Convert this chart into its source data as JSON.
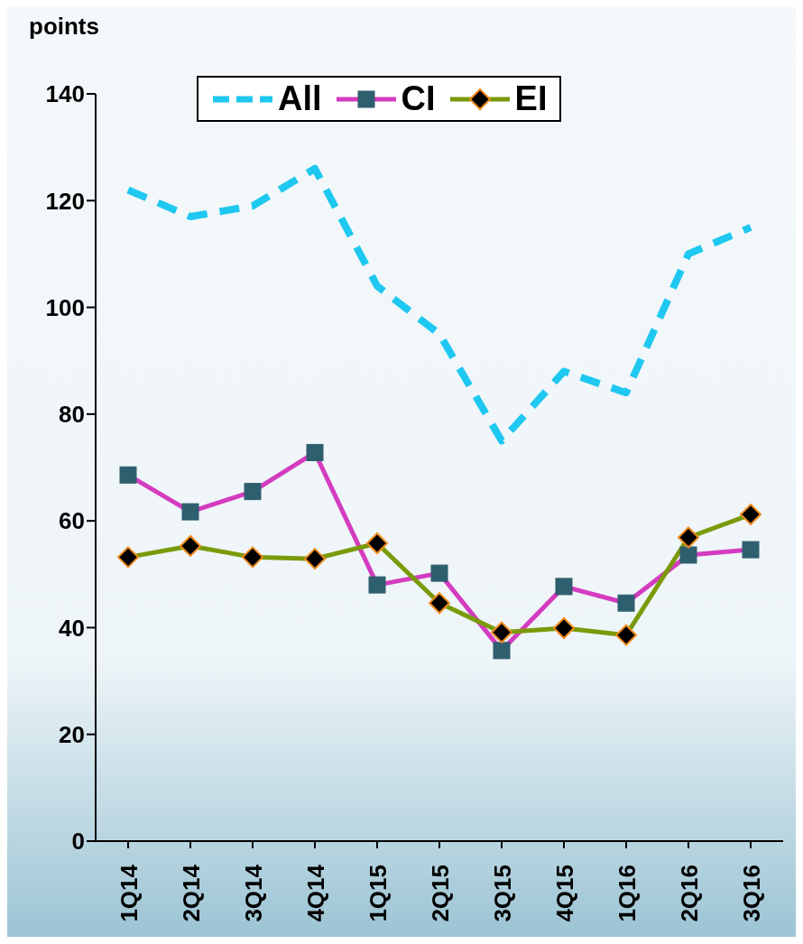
{
  "chart_data": {
    "type": "line",
    "ylabel": "points",
    "categories": [
      "1Q14",
      "2Q14",
      "3Q14",
      "4Q14",
      "1Q15",
      "2Q15",
      "3Q15",
      "4Q15",
      "1Q16",
      "2Q16",
      "3Q16"
    ],
    "series": [
      {
        "name": "All",
        "color": "#1ec8f0",
        "line_style": "dashed",
        "marker": "none",
        "values": [
          122,
          117,
          119,
          126,
          104,
          95,
          75,
          88,
          84,
          110,
          115
        ]
      },
      {
        "name": "CI",
        "color": "#d43cc0",
        "line_style": "solid",
        "marker": "square",
        "values": [
          68.6,
          61.7,
          65.5,
          72.8,
          48,
          50.2,
          35.7,
          47.7,
          44.6,
          53.6,
          54.6
        ]
      },
      {
        "name": "EI",
        "color": "#7a9a0a",
        "line_style": "solid",
        "marker": "diamond",
        "values": [
          53.2,
          55.3,
          53.2,
          52.9,
          55.8,
          44.6,
          39.1,
          39.9,
          38.6,
          56.9,
          61.2
        ]
      }
    ],
    "ylim": [
      0,
      140
    ],
    "yticks": [
      0,
      20,
      40,
      60,
      80,
      100,
      120,
      140
    ],
    "grid": false,
    "legend": "top"
  }
}
